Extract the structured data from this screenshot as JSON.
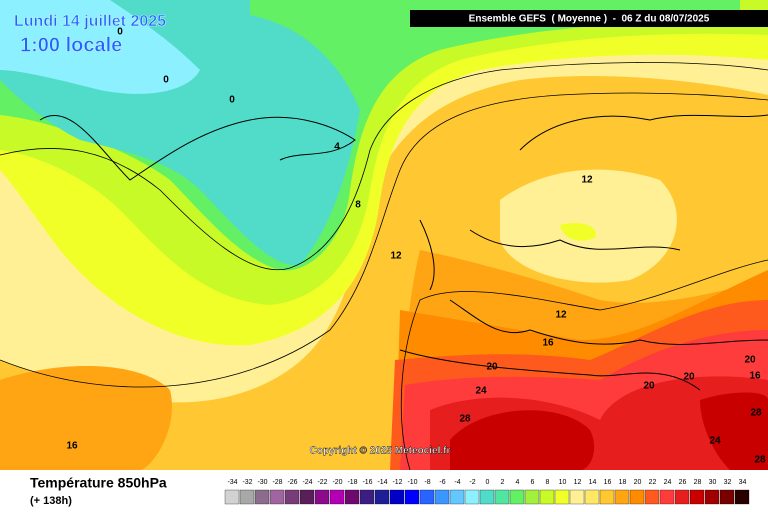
{
  "header": {
    "date": "Lundi 14 juillet 2025",
    "local_time": "1:00 locale",
    "run": "Ensemble GEFS  ( Moyenne )  -  06 Z du 08/07/2025"
  },
  "contour_labels": [
    0,
    0,
    0,
    4,
    8,
    12,
    12,
    12,
    16,
    20,
    24,
    28,
    20,
    20,
    20,
    16,
    28,
    24,
    28,
    16
  ],
  "copyright": "Copyright © 2025 Meteociel.fr",
  "legend": {
    "title": "Température 850hPa",
    "lead_time": "(+ 138h)",
    "values": [
      -34,
      -32,
      -30,
      -28,
      -26,
      -24,
      -22,
      -20,
      -18,
      -16,
      -14,
      -12,
      -10,
      -8,
      -6,
      -4,
      -2,
      0,
      2,
      4,
      6,
      8,
      10,
      12,
      14,
      16,
      18,
      20,
      22,
      24,
      26,
      28,
      30,
      32,
      34
    ],
    "colors": [
      "#d2d2d2",
      "#a8a8a8",
      "#8c6c8c",
      "#a064a0",
      "#783c78",
      "#5a1e5a",
      "#8c0a8c",
      "#b400b4",
      "#6e0a6e",
      "#3c1e82",
      "#1e1e96",
      "#0000c8",
      "#0000ff",
      "#2864ff",
      "#3c96ff",
      "#64c8ff",
      "#8cf0ff",
      "#50dcc8",
      "#50e6a0",
      "#64f064",
      "#a0f03c",
      "#c8fa28",
      "#f0ff28",
      "#fff096",
      "#ffe664",
      "#ffc832",
      "#ffa514",
      "#ff8c00",
      "#ff5a1e",
      "#ff3c3c",
      "#e61e1e",
      "#c80000",
      "#a00000",
      "#780000",
      "#280000"
    ]
  }
}
